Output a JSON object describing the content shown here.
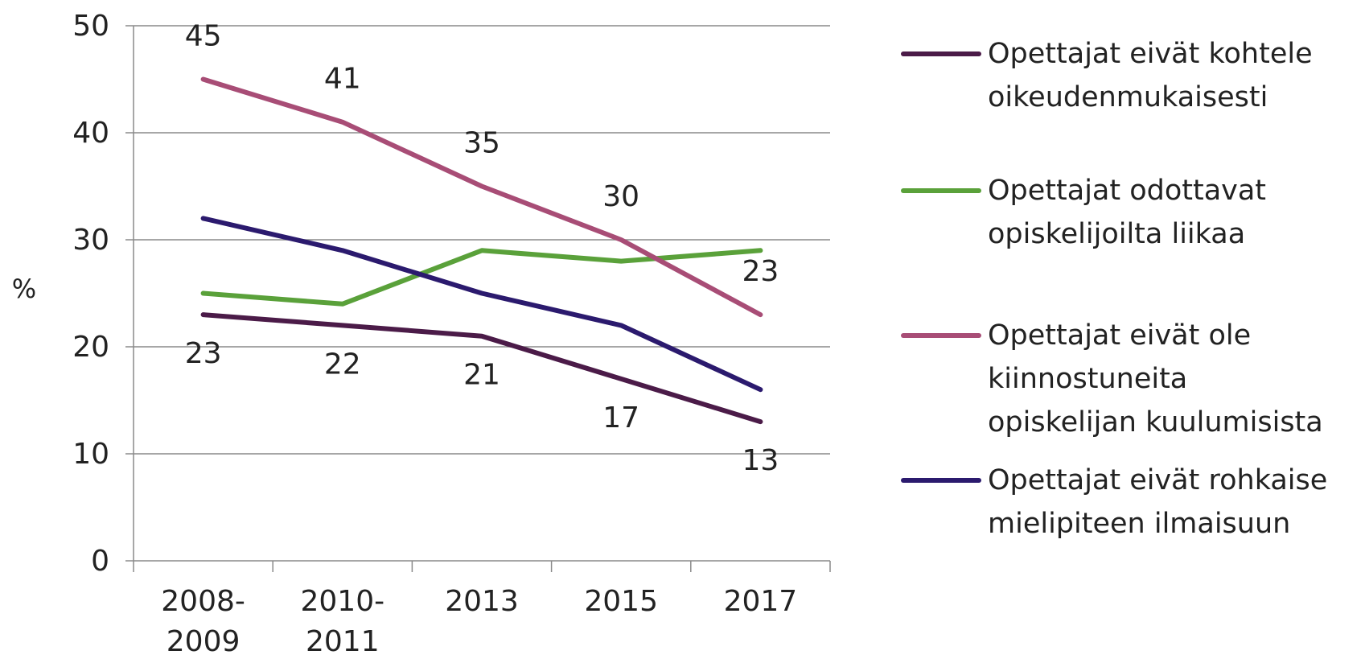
{
  "chart_data": {
    "type": "line",
    "ylabel": "%",
    "ylim": [
      0,
      50
    ],
    "yticks": [
      "0",
      "10",
      "20",
      "30",
      "40",
      "50"
    ],
    "categories": [
      "2008-\n2009",
      "2010-\n2011",
      "2013",
      "2015",
      "2017"
    ],
    "grid": true,
    "legend_position": "right",
    "series": [
      {
        "name": "Opettajat eivät kohtele oikeudenmukaisesti",
        "color": "#4b1b48",
        "values": [
          23,
          22,
          21,
          17,
          13
        ],
        "labels": [
          "23",
          "22",
          "21",
          "17",
          "13"
        ],
        "label_position": "below"
      },
      {
        "name": "Opettajat odottavat opiskelijoilta liikaa",
        "color": "#5aa13a",
        "values": [
          25,
          24,
          29,
          28,
          29
        ]
      },
      {
        "name": "Opettajat eivät ole kiinnostuneita opiskelijan kuulumisista",
        "color": "#a84d76",
        "values": [
          45,
          41,
          35,
          30,
          23
        ],
        "labels": [
          "45",
          "41",
          "35",
          "30",
          "23"
        ],
        "label_position": "above"
      },
      {
        "name": "Opettajat eivät rohkaise mielipiteen ilmaisuun",
        "color": "#2b1a6e",
        "values": [
          32,
          29,
          25,
          22,
          16
        ]
      }
    ]
  },
  "legend": {
    "items": [
      {
        "lines": [
          "Opettajat eivät kohtele",
          "oikeudenmukaisesti"
        ],
        "color": "#4b1b48"
      },
      {
        "lines": [
          "Opettajat odottavat",
          "opiskelijoilta liikaa"
        ],
        "color": "#5aa13a"
      },
      {
        "lines": [
          "Opettajat eivät ole",
          "kiinnostuneita",
          "opiskelijan kuulumisista"
        ],
        "color": "#a84d76"
      },
      {
        "lines": [
          "Opettajat eivät rohkaise",
          "mielipiteen ilmaisuun"
        ],
        "color": "#2b1a6e"
      }
    ]
  }
}
